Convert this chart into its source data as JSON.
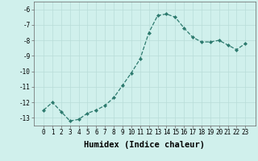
{
  "x": [
    0,
    1,
    2,
    3,
    4,
    5,
    6,
    7,
    8,
    9,
    10,
    11,
    12,
    13,
    14,
    15,
    16,
    17,
    18,
    19,
    20,
    21,
    22,
    23
  ],
  "y": [
    -12.5,
    -12.0,
    -12.6,
    -13.2,
    -13.1,
    -12.7,
    -12.5,
    -12.2,
    -11.7,
    -10.9,
    -10.1,
    -9.2,
    -7.5,
    -6.4,
    -6.3,
    -6.5,
    -7.2,
    -7.8,
    -8.1,
    -8.1,
    -8.0,
    -8.3,
    -8.6,
    -8.2
  ],
  "line_color": "#2d7a6e",
  "marker": "D",
  "marker_size": 2.0,
  "bg_color": "#d0f0ec",
  "grid_color": "#b8ddd8",
  "xlabel": "Humidex (Indice chaleur)",
  "ylim": [
    -13.5,
    -5.5
  ],
  "yticks": [
    -13,
    -12,
    -11,
    -10,
    -9,
    -8,
    -7,
    -6
  ],
  "xticks": [
    0,
    1,
    2,
    3,
    4,
    5,
    6,
    7,
    8,
    9,
    10,
    11,
    12,
    13,
    14,
    15,
    16,
    17,
    18,
    19,
    20,
    21,
    22,
    23
  ],
  "tick_fontsize": 5.5,
  "xlabel_fontsize": 7.5,
  "linewidth": 0.9
}
